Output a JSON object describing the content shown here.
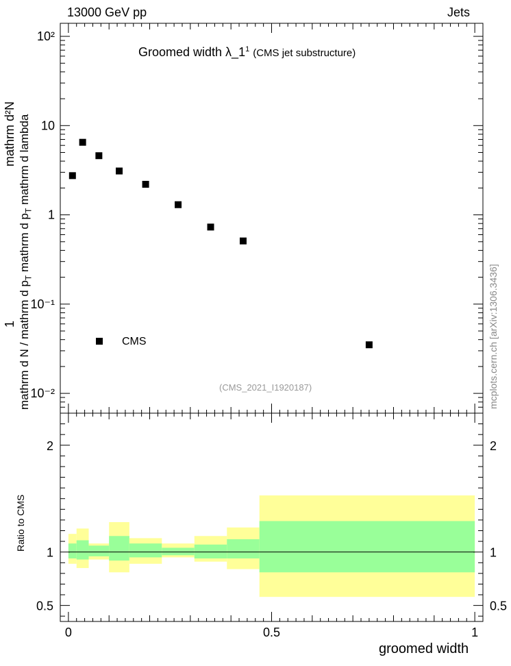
{
  "header": {
    "left": "13000 GeV pp",
    "right": "Jets"
  },
  "side_label": "mcplots.cern.ch [arXiv:1306.3436]",
  "chart_data": [
    {
      "type": "scatter",
      "title_main": "Groomed width  λ_1",
      "title_sup": "1",
      "title_sub": "(CMS jet substructure)",
      "reference": "(CMS_2021_I1920187)",
      "ylabel_top": "1",
      "ylabel_num": "mathrm d²N",
      "ylabel_den_a": "mathrm d N / mathrm d p",
      "ylabel_den_b": "T",
      "ylabel_den_c": "mathrm d p",
      "ylabel_den_d": "T",
      "ylabel_den_e": "mathrm d lambda",
      "yscale": "log",
      "ylim": [
        0.006,
        140
      ],
      "xlim": [
        -0.02,
        1.02
      ],
      "legend": "CMS",
      "legend_position": "bottom-left",
      "yticks": [
        "10⁻²",
        "10⁻¹",
        "1",
        "10",
        "10²"
      ],
      "series": [
        {
          "name": "CMS",
          "x": [
            0.01,
            0.035,
            0.075,
            0.125,
            0.19,
            0.27,
            0.35,
            0.43,
            0.74
          ],
          "y": [
            2.75,
            6.5,
            4.6,
            3.1,
            2.2,
            1.3,
            0.73,
            0.51,
            0.035
          ]
        }
      ]
    },
    {
      "type": "area",
      "ylabel": "Ratio to CMS",
      "xlabel": "groomed width",
      "ylim": [
        0.35,
        2.3
      ],
      "xlim": [
        -0.02,
        1.02
      ],
      "xticks": [
        "0",
        "0.5",
        "1"
      ],
      "yticks": [
        "0.5",
        "1",
        "2"
      ],
      "bins": [
        {
          "x0": 0.0,
          "x1": 0.02,
          "inner": [
            0.94,
            1.08
          ],
          "outer": [
            0.89,
            1.17
          ]
        },
        {
          "x0": 0.02,
          "x1": 0.05,
          "inner": [
            0.93,
            1.11
          ],
          "outer": [
            0.85,
            1.22
          ]
        },
        {
          "x0": 0.05,
          "x1": 0.1,
          "inner": [
            0.96,
            1.06
          ],
          "outer": [
            0.93,
            1.08
          ]
        },
        {
          "x0": 0.1,
          "x1": 0.15,
          "inner": [
            0.92,
            1.15
          ],
          "outer": [
            0.81,
            1.28
          ]
        },
        {
          "x0": 0.15,
          "x1": 0.23,
          "inner": [
            0.95,
            1.08
          ],
          "outer": [
            0.89,
            1.13
          ]
        },
        {
          "x0": 0.23,
          "x1": 0.31,
          "inner": [
            0.97,
            1.04
          ],
          "outer": [
            0.95,
            1.08
          ]
        },
        {
          "x0": 0.31,
          "x1": 0.39,
          "inner": [
            0.94,
            1.07
          ],
          "outer": [
            0.91,
            1.15
          ]
        },
        {
          "x0": 0.39,
          "x1": 0.47,
          "inner": [
            0.94,
            1.12
          ],
          "outer": [
            0.84,
            1.23
          ]
        },
        {
          "x0": 0.47,
          "x1": 1.0,
          "inner": [
            0.81,
            1.29
          ],
          "outer": [
            0.58,
            1.53
          ]
        }
      ],
      "reference_line": 1
    }
  ],
  "colors": {
    "inner_band": "#99ff99",
    "outer_band": "#ffff99",
    "marker": "#000000"
  }
}
